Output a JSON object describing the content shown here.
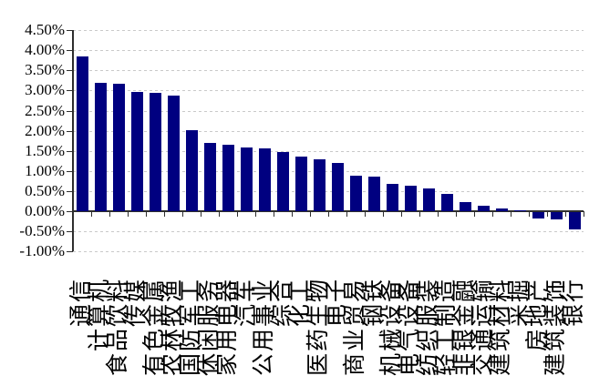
{
  "chart_data": {
    "type": "bar",
    "title": "",
    "xlabel": "",
    "ylabel": "",
    "categories": [
      "通信",
      "计算机",
      "食品饮料",
      "传媒",
      "有色金属",
      "农林牧渔",
      "国防军工",
      "休闲服务",
      "家用电器",
      "汽车",
      "公用事业",
      "综合",
      "化工",
      "医药生物",
      "电子",
      "商业贸易",
      "钢铁",
      "机械设备",
      "电气设备",
      "纺织服装",
      "轻工制造",
      "非银金融",
      "交通运输",
      "建筑材料",
      "采掘",
      "房地产",
      "建筑装饰",
      "银行"
    ],
    "values": [
      3.85,
      3.2,
      3.18,
      2.97,
      2.95,
      2.87,
      2.02,
      1.7,
      1.66,
      1.58,
      1.57,
      1.47,
      1.35,
      1.28,
      1.2,
      0.88,
      0.87,
      0.69,
      0.63,
      0.57,
      0.43,
      0.22,
      0.14,
      0.06,
      0.02,
      -0.15,
      -0.18,
      -0.42
    ],
    "value_unit": "%",
    "ylim": [
      -1.0,
      4.5
    ],
    "yticks": [
      {
        "value": 4.5,
        "label": "4.50%"
      },
      {
        "value": 4.0,
        "label": "4.00%"
      },
      {
        "value": 3.5,
        "label": "3.50%"
      },
      {
        "value": 3.0,
        "label": "3.00%"
      },
      {
        "value": 2.5,
        "label": "2.50%"
      },
      {
        "value": 2.0,
        "label": "2.00%"
      },
      {
        "value": 1.5,
        "label": "1.50%"
      },
      {
        "value": 1.0,
        "label": "1.00%"
      },
      {
        "value": 0.5,
        "label": "0.50%"
      },
      {
        "value": 0.0,
        "label": "0.00%"
      },
      {
        "value": -0.5,
        "label": "-0.50%"
      },
      {
        "value": -1.0,
        "label": "-1.00%"
      }
    ],
    "grid": "horizontal-dashed",
    "legend": "none",
    "bar_color": "#000080",
    "gridline_color": "#c9c9c9",
    "axis_color": "#2e2e2e"
  }
}
